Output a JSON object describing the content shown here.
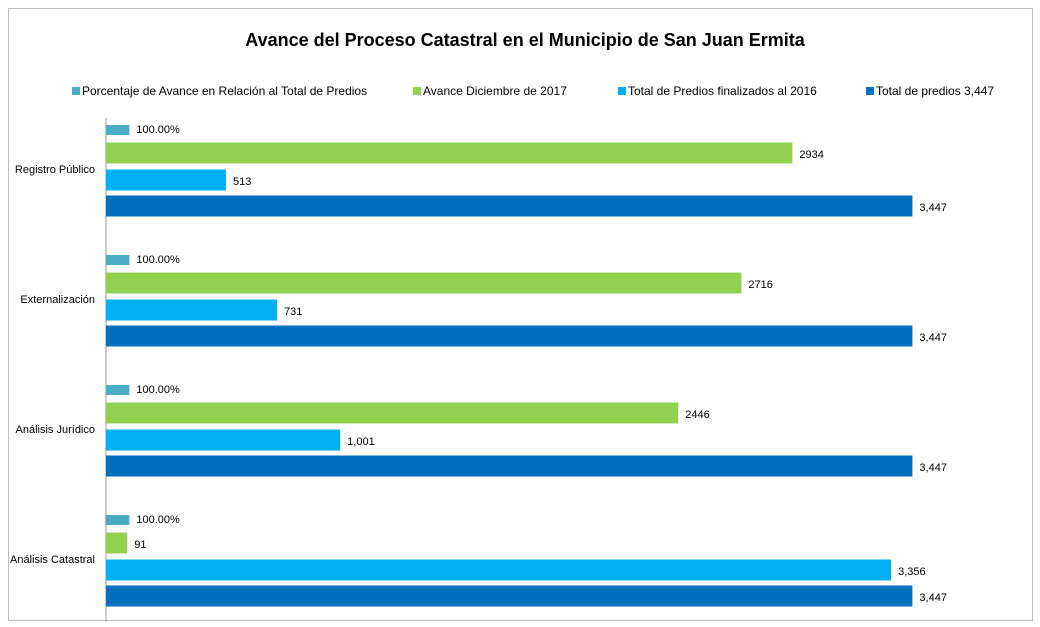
{
  "chart_data": {
    "type": "barh",
    "title": "Avance del Proceso Catastral en el Municipio de San Juan Ermita",
    "categories": [
      "Registro Público",
      "Externalización",
      "Análisis Jurídico",
      "Análisis Catastral"
    ],
    "series": [
      {
        "name": "Porcentaje de Avance en Relación al Total de Predios",
        "color": "#4bacc6",
        "values": [
          100,
          100,
          100,
          100
        ],
        "value_labels": [
          "100.00%",
          "100.00%",
          "100.00%",
          "100.00%"
        ]
      },
      {
        "name": "Avance Diciembre de 2017",
        "color": "#92d050",
        "values": [
          2934,
          2716,
          2446,
          91
        ]
      },
      {
        "name": "Total de Predios finalizados al 2016",
        "color": "#00b0f0",
        "values": [
          513,
          731,
          1001,
          3356
        ],
        "value_labels": [
          "513",
          "731",
          "1,001",
          "3,356"
        ]
      },
      {
        "name": "Total de predios  3,447",
        "color": "#0070c0",
        "values": [
          3447,
          3447,
          3447,
          3447
        ],
        "value_labels": [
          "3,447",
          "3,447",
          "3,447",
          "3,447"
        ]
      }
    ],
    "xlim": [
      0,
      3800
    ]
  }
}
